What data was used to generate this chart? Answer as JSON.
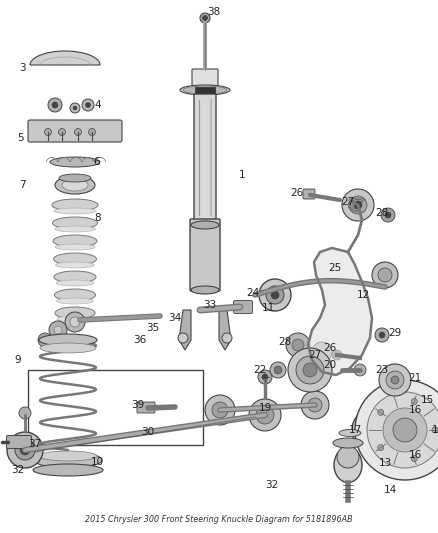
{
  "title": "2015 Chrysler 300 Front Steering Knuckle Diagram for 5181896AB",
  "bg_color": "#ffffff",
  "fig_width": 4.38,
  "fig_height": 5.33,
  "dpi": 100
}
